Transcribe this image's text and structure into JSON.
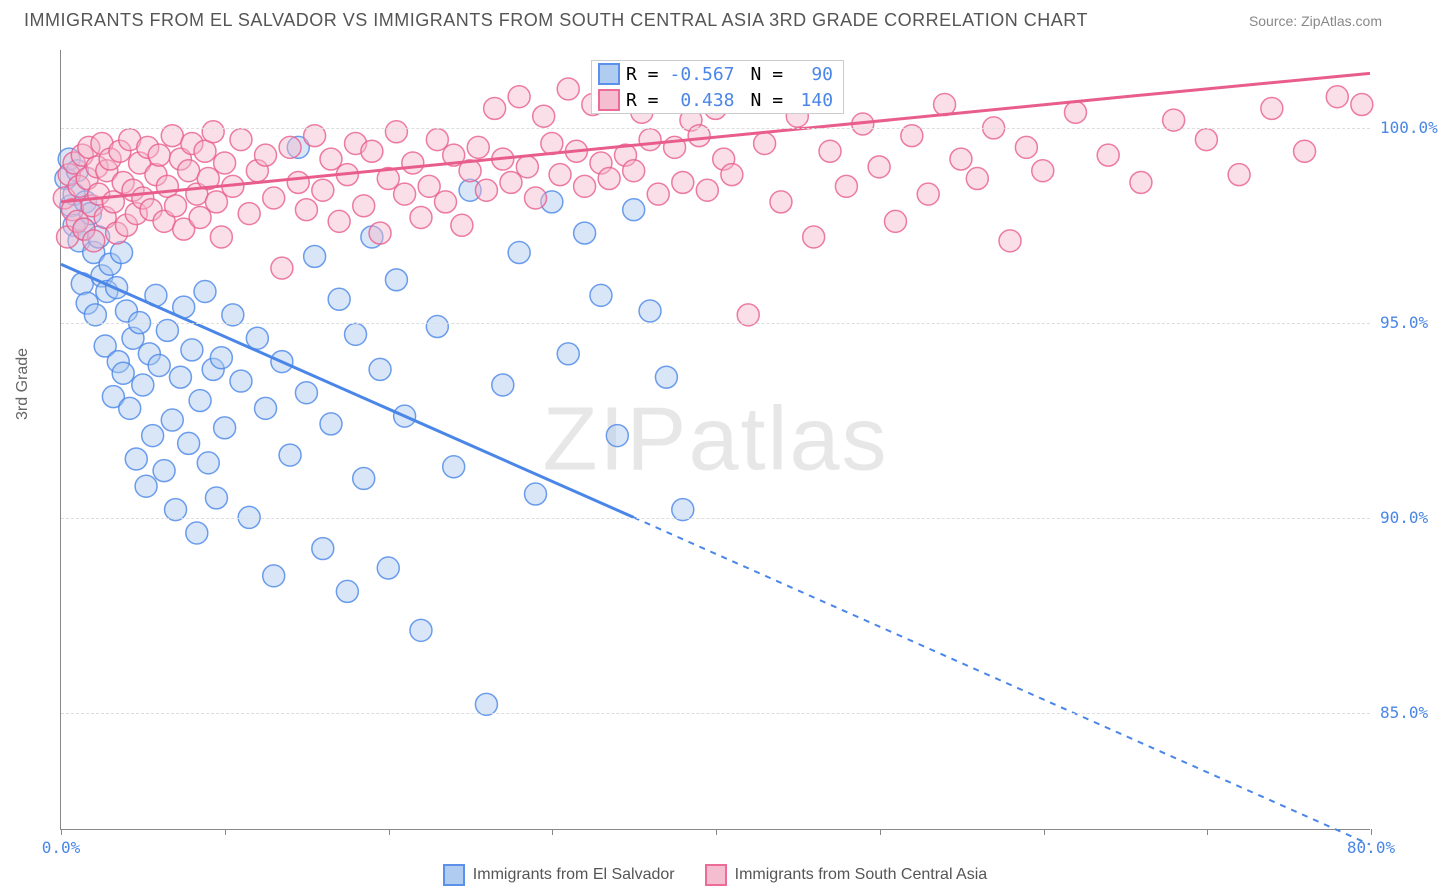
{
  "header": {
    "title": "IMMIGRANTS FROM EL SALVADOR VS IMMIGRANTS FROM SOUTH CENTRAL ASIA 3RD GRADE CORRELATION CHART",
    "source": "Source: ZipAtlas.com"
  },
  "watermark": {
    "zip": "ZIP",
    "atlas": "atlas"
  },
  "chart": {
    "type": "scatter",
    "ylabel": "3rd Grade",
    "xlim": [
      0,
      80
    ],
    "ylim": [
      82,
      102
    ],
    "xticks": [
      0,
      10,
      20,
      30,
      40,
      50,
      60,
      70,
      80
    ],
    "xtick_labels_shown": {
      "0": "0.0%",
      "80": "80.0%"
    },
    "xtick_color_left": "#4a86e8",
    "xtick_color_right": "#4a86e8",
    "yticks": [
      85,
      90,
      95,
      100
    ],
    "ytick_labels": [
      "85.0%",
      "90.0%",
      "95.0%",
      "100.0%"
    ],
    "ytick_color": "#4a86e8",
    "grid_color": "#dddddd",
    "background_color": "#ffffff",
    "axis_color": "#888888",
    "series": [
      {
        "name": "Immigrants from El Salvador",
        "color_stroke": "#4a86e8",
        "color_fill": "#a8c8f0",
        "fill_opacity": 0.45,
        "marker_radius": 11,
        "R": "-0.567",
        "N": "90",
        "trend": {
          "x1": 0,
          "y1": 96.5,
          "x2_solid": 35,
          "y2_solid": 90.0,
          "x2": 80,
          "y2": 81.6,
          "dash": "6,6"
        },
        "points": [
          [
            0.3,
            98.7
          ],
          [
            0.5,
            99.2
          ],
          [
            0.6,
            98.0
          ],
          [
            0.8,
            97.5
          ],
          [
            0.8,
            98.3
          ],
          [
            1.0,
            98.9
          ],
          [
            1.1,
            97.1
          ],
          [
            1.3,
            96.0
          ],
          [
            1.4,
            97.4
          ],
          [
            1.5,
            98.1
          ],
          [
            1.6,
            95.5
          ],
          [
            1.8,
            97.8
          ],
          [
            2.0,
            96.8
          ],
          [
            2.1,
            95.2
          ],
          [
            2.3,
            97.2
          ],
          [
            2.5,
            96.2
          ],
          [
            2.7,
            94.4
          ],
          [
            2.8,
            95.8
          ],
          [
            3.0,
            96.5
          ],
          [
            3.2,
            93.1
          ],
          [
            3.4,
            95.9
          ],
          [
            3.5,
            94.0
          ],
          [
            3.7,
            96.8
          ],
          [
            3.8,
            93.7
          ],
          [
            4.0,
            95.3
          ],
          [
            4.2,
            92.8
          ],
          [
            4.4,
            94.6
          ],
          [
            4.6,
            91.5
          ],
          [
            4.8,
            95.0
          ],
          [
            5.0,
            93.4
          ],
          [
            5.2,
            90.8
          ],
          [
            5.4,
            94.2
          ],
          [
            5.6,
            92.1
          ],
          [
            5.8,
            95.7
          ],
          [
            6.0,
            93.9
          ],
          [
            6.3,
            91.2
          ],
          [
            6.5,
            94.8
          ],
          [
            6.8,
            92.5
          ],
          [
            7.0,
            90.2
          ],
          [
            7.3,
            93.6
          ],
          [
            7.5,
            95.4
          ],
          [
            7.8,
            91.9
          ],
          [
            8.0,
            94.3
          ],
          [
            8.3,
            89.6
          ],
          [
            8.5,
            93.0
          ],
          [
            8.8,
            95.8
          ],
          [
            9.0,
            91.4
          ],
          [
            9.3,
            93.8
          ],
          [
            9.5,
            90.5
          ],
          [
            9.8,
            94.1
          ],
          [
            10.0,
            92.3
          ],
          [
            10.5,
            95.2
          ],
          [
            11.0,
            93.5
          ],
          [
            11.5,
            90.0
          ],
          [
            12.0,
            94.6
          ],
          [
            12.5,
            92.8
          ],
          [
            13.0,
            88.5
          ],
          [
            13.5,
            94.0
          ],
          [
            14.0,
            91.6
          ],
          [
            14.5,
            99.5
          ],
          [
            15.0,
            93.2
          ],
          [
            15.5,
            96.7
          ],
          [
            16.0,
            89.2
          ],
          [
            16.5,
            92.4
          ],
          [
            17.0,
            95.6
          ],
          [
            17.5,
            88.1
          ],
          [
            18.0,
            94.7
          ],
          [
            18.5,
            91.0
          ],
          [
            19.0,
            97.2
          ],
          [
            19.5,
            93.8
          ],
          [
            20.0,
            88.7
          ],
          [
            20.5,
            96.1
          ],
          [
            21.0,
            92.6
          ],
          [
            22.0,
            87.1
          ],
          [
            23.0,
            94.9
          ],
          [
            24.0,
            91.3
          ],
          [
            25.0,
            98.4
          ],
          [
            26.0,
            85.2
          ],
          [
            27.0,
            93.4
          ],
          [
            28.0,
            96.8
          ],
          [
            29.0,
            90.6
          ],
          [
            30.0,
            98.1
          ],
          [
            31.0,
            94.2
          ],
          [
            32.0,
            97.3
          ],
          [
            33.0,
            95.7
          ],
          [
            34.0,
            92.1
          ],
          [
            35.0,
            97.9
          ],
          [
            36.0,
            95.3
          ],
          [
            37.0,
            93.6
          ],
          [
            38.0,
            90.2
          ]
        ]
      },
      {
        "name": "Immigrants from South Central Asia",
        "color_stroke": "#e85d8c",
        "color_fill": "#f5b8cc",
        "fill_opacity": 0.45,
        "marker_radius": 11,
        "R": "0.438",
        "N": "140",
        "trend": {
          "x1": 0,
          "y1": 98.1,
          "x2_solid": 65,
          "y2_solid": 100.8,
          "x2": 80,
          "y2": 101.4,
          "dash": "none"
        },
        "points": [
          [
            0.2,
            98.2
          ],
          [
            0.4,
            97.2
          ],
          [
            0.5,
            98.8
          ],
          [
            0.7,
            97.9
          ],
          [
            0.8,
            99.1
          ],
          [
            1.0,
            97.6
          ],
          [
            1.1,
            98.5
          ],
          [
            1.3,
            99.3
          ],
          [
            1.4,
            97.4
          ],
          [
            1.6,
            98.7
          ],
          [
            1.7,
            99.5
          ],
          [
            1.9,
            98.0
          ],
          [
            2.0,
            97.1
          ],
          [
            2.2,
            99.0
          ],
          [
            2.3,
            98.3
          ],
          [
            2.5,
            99.6
          ],
          [
            2.7,
            97.7
          ],
          [
            2.8,
            98.9
          ],
          [
            3.0,
            99.2
          ],
          [
            3.2,
            98.1
          ],
          [
            3.4,
            97.3
          ],
          [
            3.6,
            99.4
          ],
          [
            3.8,
            98.6
          ],
          [
            4.0,
            97.5
          ],
          [
            4.2,
            99.7
          ],
          [
            4.4,
            98.4
          ],
          [
            4.6,
            97.8
          ],
          [
            4.8,
            99.1
          ],
          [
            5.0,
            98.2
          ],
          [
            5.3,
            99.5
          ],
          [
            5.5,
            97.9
          ],
          [
            5.8,
            98.8
          ],
          [
            6.0,
            99.3
          ],
          [
            6.3,
            97.6
          ],
          [
            6.5,
            98.5
          ],
          [
            6.8,
            99.8
          ],
          [
            7.0,
            98.0
          ],
          [
            7.3,
            99.2
          ],
          [
            7.5,
            97.4
          ],
          [
            7.8,
            98.9
          ],
          [
            8.0,
            99.6
          ],
          [
            8.3,
            98.3
          ],
          [
            8.5,
            97.7
          ],
          [
            8.8,
            99.4
          ],
          [
            9.0,
            98.7
          ],
          [
            9.3,
            99.9
          ],
          [
            9.5,
            98.1
          ],
          [
            9.8,
            97.2
          ],
          [
            10.0,
            99.1
          ],
          [
            10.5,
            98.5
          ],
          [
            11.0,
            99.7
          ],
          [
            11.5,
            97.8
          ],
          [
            12.0,
            98.9
          ],
          [
            12.5,
            99.3
          ],
          [
            13.0,
            98.2
          ],
          [
            13.5,
            96.4
          ],
          [
            14.0,
            99.5
          ],
          [
            14.5,
            98.6
          ],
          [
            15.0,
            97.9
          ],
          [
            15.5,
            99.8
          ],
          [
            16.0,
            98.4
          ],
          [
            16.5,
            99.2
          ],
          [
            17.0,
            97.6
          ],
          [
            17.5,
            98.8
          ],
          [
            18.0,
            99.6
          ],
          [
            18.5,
            98.0
          ],
          [
            19.0,
            99.4
          ],
          [
            19.5,
            97.3
          ],
          [
            20.0,
            98.7
          ],
          [
            20.5,
            99.9
          ],
          [
            21.0,
            98.3
          ],
          [
            21.5,
            99.1
          ],
          [
            22.0,
            97.7
          ],
          [
            22.5,
            98.5
          ],
          [
            23.0,
            99.7
          ],
          [
            23.5,
            98.1
          ],
          [
            24.0,
            99.3
          ],
          [
            24.5,
            97.5
          ],
          [
            25.0,
            98.9
          ],
          [
            25.5,
            99.5
          ],
          [
            26.0,
            98.4
          ],
          [
            26.5,
            100.5
          ],
          [
            27.0,
            99.2
          ],
          [
            27.5,
            98.6
          ],
          [
            28.0,
            100.8
          ],
          [
            28.5,
            99.0
          ],
          [
            29.0,
            98.2
          ],
          [
            29.5,
            100.3
          ],
          [
            30.0,
            99.6
          ],
          [
            30.5,
            98.8
          ],
          [
            31.0,
            101.0
          ],
          [
            31.5,
            99.4
          ],
          [
            32.0,
            98.5
          ],
          [
            32.5,
            100.6
          ],
          [
            33.0,
            99.1
          ],
          [
            33.5,
            98.7
          ],
          [
            34.0,
            100.9
          ],
          [
            34.5,
            99.3
          ],
          [
            35.0,
            98.9
          ],
          [
            35.5,
            100.4
          ],
          [
            36.0,
            99.7
          ],
          [
            36.5,
            98.3
          ],
          [
            37.0,
            100.7
          ],
          [
            37.5,
            99.5
          ],
          [
            38.0,
            98.6
          ],
          [
            38.5,
            100.2
          ],
          [
            39.0,
            99.8
          ],
          [
            39.5,
            98.4
          ],
          [
            40.0,
            100.5
          ],
          [
            40.5,
            99.2
          ],
          [
            41.0,
            98.8
          ],
          [
            42.0,
            95.2
          ],
          [
            43.0,
            99.6
          ],
          [
            44.0,
            98.1
          ],
          [
            45.0,
            100.3
          ],
          [
            46.0,
            97.2
          ],
          [
            47.0,
            99.4
          ],
          [
            48.0,
            98.5
          ],
          [
            49.0,
            100.1
          ],
          [
            50.0,
            99.0
          ],
          [
            51.0,
            97.6
          ],
          [
            52.0,
            99.8
          ],
          [
            53.0,
            98.3
          ],
          [
            54.0,
            100.6
          ],
          [
            55.0,
            99.2
          ],
          [
            56.0,
            98.7
          ],
          [
            57.0,
            100.0
          ],
          [
            58.0,
            97.1
          ],
          [
            59.0,
            99.5
          ],
          [
            60.0,
            98.9
          ],
          [
            62.0,
            100.4
          ],
          [
            64.0,
            99.3
          ],
          [
            66.0,
            98.6
          ],
          [
            68.0,
            100.2
          ],
          [
            70.0,
            99.7
          ],
          [
            72.0,
            98.8
          ],
          [
            74.0,
            100.5
          ],
          [
            76.0,
            99.4
          ],
          [
            78.0,
            100.8
          ],
          [
            79.5,
            100.6
          ]
        ]
      }
    ]
  },
  "legend_stats": {
    "label_R": "R =",
    "label_N": "N ="
  },
  "bottom_legend": {
    "items": [
      {
        "label": "Immigrants from El Salvador"
      },
      {
        "label": "Immigrants from South Central Asia"
      }
    ]
  }
}
